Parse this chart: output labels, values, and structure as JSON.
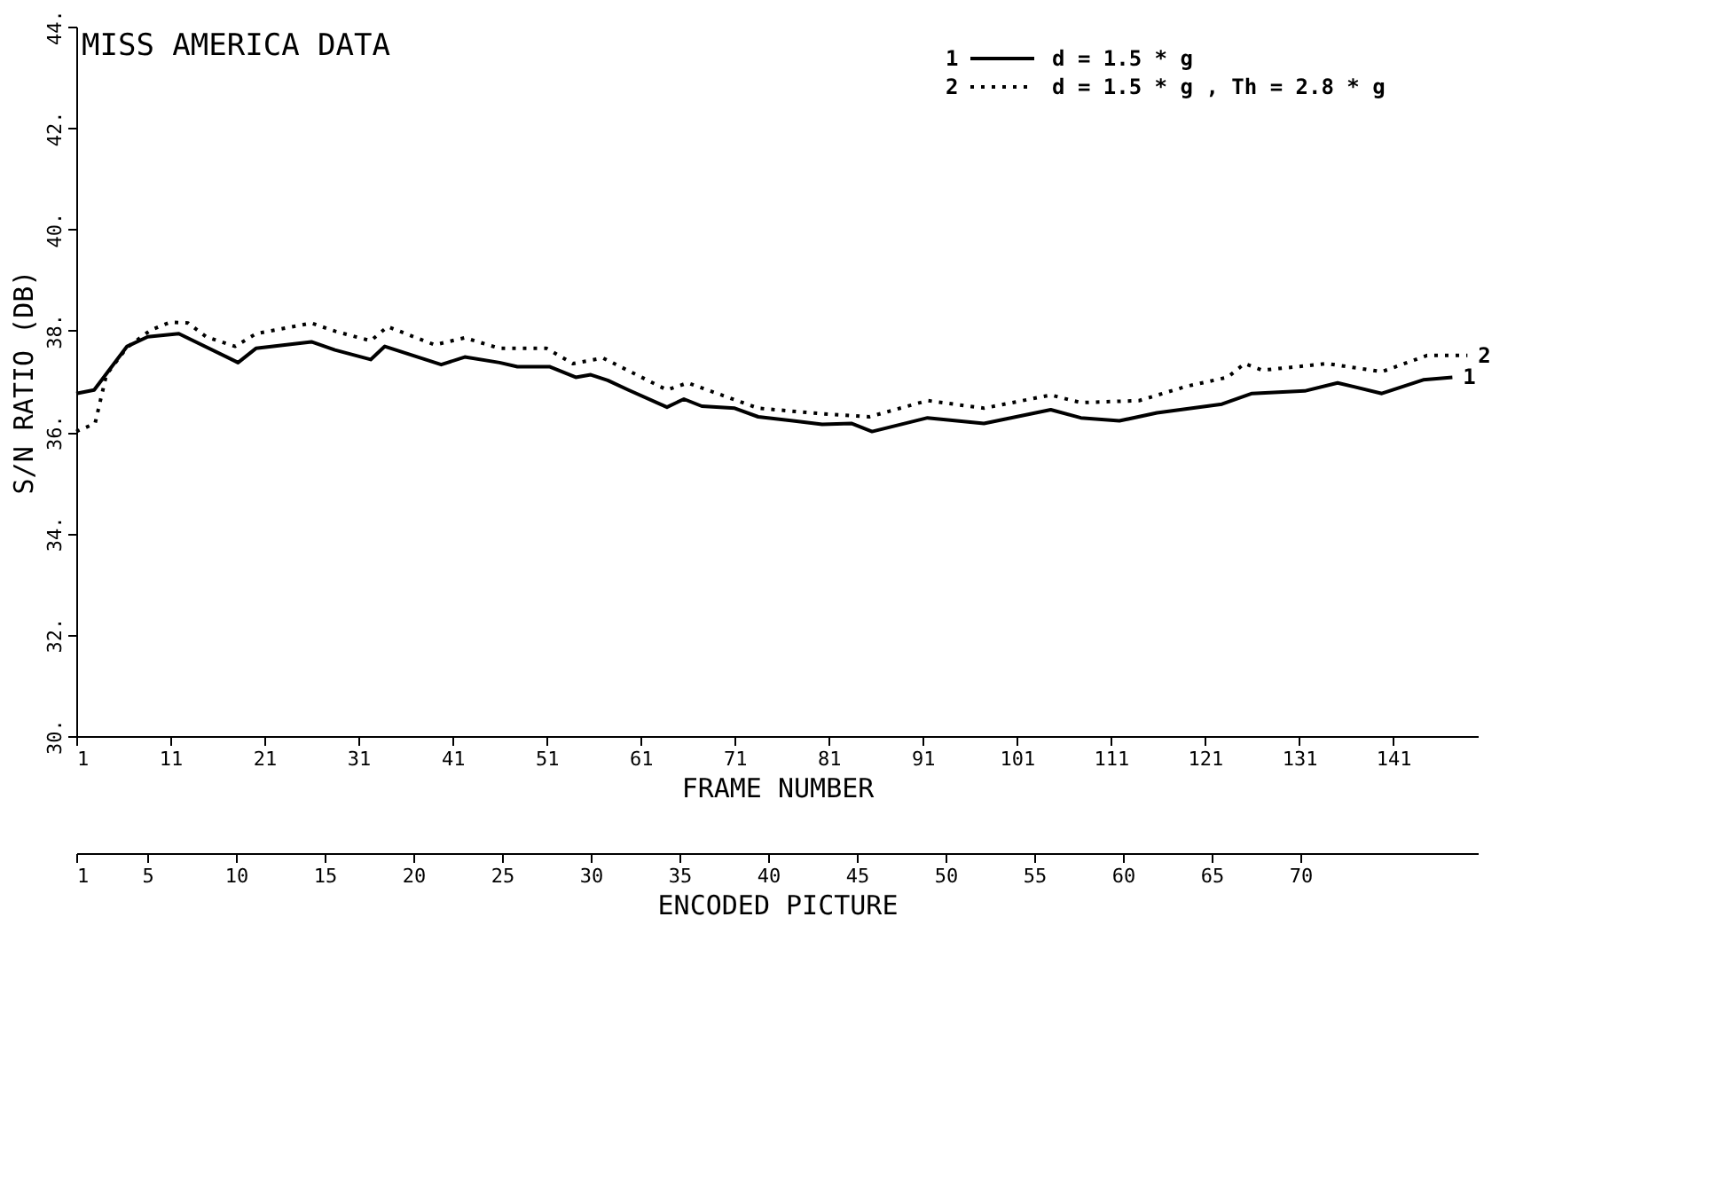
{
  "chart_data": {
    "type": "line",
    "title": "MISS AMERICA DATA",
    "xlabel": "FRAME NUMBER",
    "ylabel": "S/N RATIO  (DB)",
    "x2label": "ENCODED PICTURE",
    "xlim": [
      1,
      150
    ],
    "xticks": [
      1,
      11,
      21,
      31,
      41,
      51,
      61,
      71,
      81,
      91,
      101,
      111,
      121,
      131,
      141
    ],
    "x2lim": [
      1,
      80
    ],
    "x2ticks": [
      1,
      5,
      10,
      15,
      20,
      25,
      30,
      35,
      40,
      45,
      50,
      55,
      60,
      65,
      70
    ],
    "ylim": [
      30,
      44
    ],
    "yticks": [
      {
        "value": 30,
        "label": "30."
      },
      {
        "value": 32,
        "label": "32."
      },
      {
        "value": 34,
        "label": "34."
      },
      {
        "value": 36,
        "label": "36."
      },
      {
        "value": 38,
        "label": "38."
      },
      {
        "value": 40,
        "label": "40."
      },
      {
        "value": 42,
        "label": "42."
      },
      {
        "value": 44,
        "label": "44."
      }
    ],
    "grid": false,
    "legend": "top right",
    "marker": "none",
    "series": [
      {
        "name": "d = 1.5 * g",
        "color": "#000000",
        "line_style": "solid",
        "x": [
          1,
          2.9,
          6.4,
          8.6,
          11.9,
          18.2,
          20.1,
          26,
          28.5,
          32.3,
          33.8,
          39.8,
          42.3,
          46,
          47.9,
          51.3,
          54.1,
          55.7,
          57.5,
          59.7,
          63.8,
          65.6,
          67.5,
          71,
          73.5,
          77.2,
          80.3,
          83.4,
          85.6,
          91.5,
          97.5,
          104.6,
          107.8,
          111.9,
          115.9,
          122.8,
          126,
          131.6,
          135.1,
          139.8,
          144.2,
          147.3
        ],
        "values": [
          36.76,
          36.83,
          37.69,
          37.88,
          37.94,
          37.37,
          37.65,
          37.78,
          37.62,
          37.43,
          37.69,
          37.33,
          37.48,
          37.37,
          37.29,
          37.29,
          37.08,
          37.13,
          37.02,
          36.83,
          36.49,
          36.65,
          36.51,
          36.47,
          36.3,
          36.22,
          36.15,
          36.17,
          36.01,
          36.28,
          36.17,
          36.44,
          36.28,
          36.22,
          36.38,
          36.55,
          36.76,
          36.81,
          36.97,
          36.76,
          37.03,
          37.08
        ]
      },
      {
        "name": "d = 1.5 * g ,  Th = 2.8 * g",
        "color": "#000000",
        "line_style": "dotted",
        "x": [
          1,
          3,
          4.2,
          6.4,
          8.9,
          11,
          12.9,
          14.8,
          17.9,
          20.1,
          26,
          28.5,
          32.3,
          34.1,
          39.1,
          42.3,
          46,
          51,
          53.8,
          57,
          63.8,
          66,
          73.5,
          80.3,
          85.3,
          91.5,
          97.5,
          104.6,
          107.8,
          114,
          119,
          123.4,
          125.2,
          127.1,
          134,
          139.8,
          144.6,
          148.9
        ],
        "values": [
          36.01,
          36.17,
          37.13,
          37.67,
          38.01,
          38.17,
          38.15,
          37.88,
          37.69,
          37.94,
          38.15,
          37.99,
          37.8,
          38.08,
          37.72,
          37.86,
          37.65,
          37.65,
          37.35,
          37.46,
          36.83,
          36.97,
          36.47,
          36.36,
          36.3,
          36.62,
          36.47,
          36.73,
          36.58,
          36.62,
          36.9,
          37.08,
          37.35,
          37.22,
          37.35,
          37.19,
          37.51,
          37.51
        ]
      }
    ],
    "annotations": [
      {
        "text": "1",
        "x": 147.3,
        "y": 37.08
      },
      {
        "text": "2",
        "x": 148.9,
        "y": 37.51
      }
    ]
  }
}
